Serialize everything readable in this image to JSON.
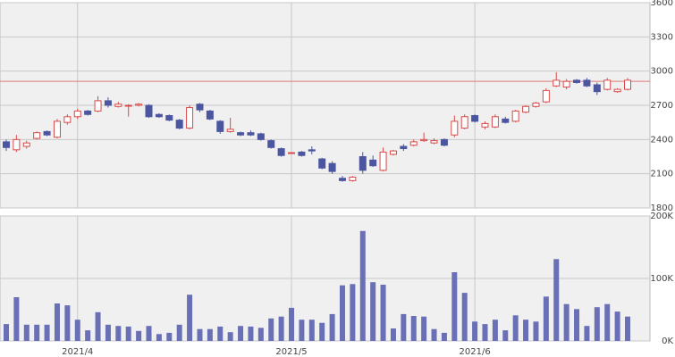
{
  "chart_data": [
    {
      "type": "candlestick",
      "categories": [
        null,
        null,
        null,
        null,
        null,
        null,
        null,
        "2021/4",
        null,
        null,
        null,
        null,
        null,
        null,
        null,
        null,
        null,
        null,
        null,
        null,
        null,
        null,
        null,
        null,
        null,
        null,
        null,
        null,
        "2021/5",
        null,
        null,
        null,
        null,
        null,
        null,
        null,
        null,
        null,
        null,
        null,
        null,
        null,
        null,
        null,
        null,
        null,
        "2021/6",
        null,
        null,
        null,
        null,
        null,
        null,
        null,
        null,
        null,
        null,
        null,
        null,
        null,
        null,
        null
      ],
      "open": [
        2380,
        2310,
        2340,
        2410,
        2470,
        2420,
        2550,
        2600,
        2650,
        2650,
        2740,
        2690,
        2700,
        2700,
        2700,
        2620,
        2610,
        2570,
        2500,
        2710,
        2650,
        2560,
        2470,
        2460,
        2460,
        2450,
        2390,
        2320,
        2280,
        2290,
        2310,
        2230,
        2190,
        2060,
        2040,
        2250,
        2220,
        2130,
        2270,
        2340,
        2350,
        2390,
        2370,
        2400,
        2440,
        2500,
        2610,
        2510,
        2510,
        2580,
        2560,
        2640,
        2690,
        2730,
        2870,
        2860,
        2920,
        2920,
        2880,
        2840,
        2820,
        2840
      ],
      "high": [
        2400,
        2440,
        2390,
        2470,
        2480,
        2580,
        2620,
        2670,
        2660,
        2780,
        2770,
        2730,
        2710,
        2720,
        2710,
        2630,
        2620,
        2580,
        2700,
        2720,
        2660,
        2570,
        2590,
        2470,
        2480,
        2460,
        2400,
        2330,
        2290,
        2300,
        2340,
        2240,
        2210,
        2080,
        2080,
        2290,
        2260,
        2330,
        2310,
        2360,
        2400,
        2460,
        2410,
        2410,
        2610,
        2620,
        2620,
        2560,
        2620,
        2600,
        2660,
        2700,
        2730,
        2850,
        2990,
        2930,
        2930,
        2940,
        2900,
        2940,
        2850,
        2940
      ],
      "low": [
        2300,
        2290,
        2320,
        2400,
        2430,
        2410,
        2530,
        2580,
        2610,
        2640,
        2680,
        2680,
        2600,
        2690,
        2590,
        2590,
        2560,
        2490,
        2490,
        2640,
        2570,
        2450,
        2460,
        2430,
        2430,
        2390,
        2320,
        2250,
        2280,
        2250,
        2270,
        2140,
        2100,
        2030,
        2030,
        2100,
        2160,
        2120,
        2260,
        2300,
        2340,
        2380,
        2360,
        2340,
        2420,
        2490,
        2550,
        2490,
        2500,
        2540,
        2550,
        2630,
        2680,
        2720,
        2860,
        2840,
        2890,
        2860,
        2790,
        2830,
        2810,
        2830
      ],
      "close": [
        2330,
        2400,
        2370,
        2460,
        2440,
        2560,
        2600,
        2650,
        2620,
        2740,
        2700,
        2710,
        2700,
        2710,
        2600,
        2600,
        2570,
        2500,
        2680,
        2660,
        2580,
        2470,
        2490,
        2440,
        2440,
        2400,
        2330,
        2260,
        2285,
        2260,
        2300,
        2150,
        2120,
        2040,
        2070,
        2130,
        2170,
        2290,
        2300,
        2320,
        2380,
        2400,
        2390,
        2350,
        2560,
        2600,
        2560,
        2540,
        2600,
        2550,
        2650,
        2690,
        2720,
        2830,
        2920,
        2910,
        2900,
        2870,
        2820,
        2920,
        2840,
        2920
      ],
      "up_color": "#d84a4a",
      "down_color": "#4c56a0",
      "reference_line": {
        "value": 2910,
        "color": "#e07a7a"
      },
      "ylim": [
        1800,
        3600
      ],
      "yticks": [
        1800,
        2100,
        2400,
        2700,
        3000,
        3300,
        3600
      ],
      "grid": true
    },
    {
      "type": "bar",
      "values": [
        27000,
        70000,
        26000,
        26000,
        26000,
        60000,
        57000,
        34000,
        17000,
        46000,
        26000,
        24000,
        23000,
        16000,
        24000,
        11000,
        13000,
        26000,
        74000,
        19000,
        19000,
        23000,
        14000,
        24000,
        23000,
        21000,
        36000,
        39000,
        53000,
        34000,
        34000,
        29000,
        43000,
        89000,
        91000,
        176000,
        94000,
        90000,
        20000,
        43000,
        40000,
        39000,
        19000,
        13000,
        110000,
        77000,
        31000,
        27000,
        34000,
        17000,
        41000,
        34000,
        31000,
        71000,
        131000,
        59000,
        51000,
        24000,
        54000,
        59000,
        47000,
        39000
      ],
      "color": "#6a70b6",
      "ylim": [
        0,
        200000
      ],
      "yticks": [
        {
          "value": 0,
          "label": "0K"
        },
        {
          "value": 100000,
          "label": "100K"
        },
        {
          "value": 200000,
          "label": "200K"
        }
      ],
      "grid": true
    }
  ]
}
